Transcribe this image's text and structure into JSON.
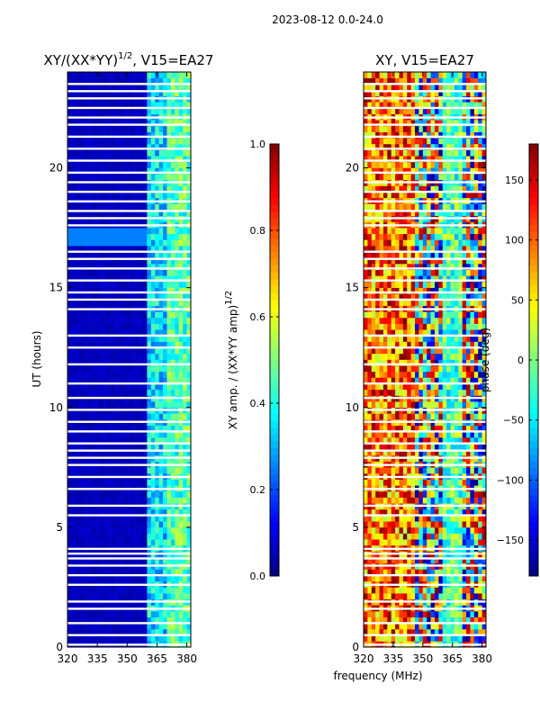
{
  "figure": {
    "suptitle": "2023-08-12 0.0-24.0",
    "xlabel_shared": "frequency (MHz)",
    "colors": {
      "jet": [
        "#00007f",
        "#0000ff",
        "#007fff",
        "#00ffff",
        "#7fff7f",
        "#ffff00",
        "#ff7f00",
        "#ff0000",
        "#7f0000"
      ]
    }
  },
  "chart_data": [
    {
      "type": "heatmap",
      "title_text": "XY/(XX*YY)",
      "title_sup": "1/2",
      "title_suffix": ", V15=EA27",
      "xlabel": "",
      "ylabel": "UT (hours)",
      "xlim": [
        320,
        382
      ],
      "ylim": [
        0,
        24
      ],
      "xticks": [
        320,
        335,
        350,
        365,
        380
      ],
      "yticks": [
        0,
        5,
        10,
        15,
        20
      ],
      "description_values": "normalized cross-correlation amplitude, mostly low (~0.05) with higher values (0.3-0.6) in 360-382 MHz band",
      "band_levels": [
        {
          "f_from": 320,
          "f_to": 360,
          "level": 0.06
        },
        {
          "f_from": 360,
          "f_to": 370,
          "level": 0.35
        },
        {
          "f_from": 370,
          "f_to": 382,
          "level": 0.45
        }
      ],
      "bright_rows_ut": [
        16.9,
        17.3
      ],
      "missing_rows_ut": [
        0.1,
        0.5,
        1.0,
        1.6,
        1.9,
        2.6,
        3.0,
        3.4,
        3.7,
        3.9,
        4.1,
        5.5,
        5.9,
        6.6,
        7.1,
        7.6,
        7.9,
        8.2,
        8.5,
        9.0,
        9.4,
        9.9,
        10.4,
        11.0,
        11.8,
        12.5,
        13.0,
        14.1,
        14.5,
        14.8,
        15.3,
        15.8,
        16.2,
        16.5,
        17.6,
        17.9,
        18.2,
        18.6,
        19.0,
        19.4,
        19.8,
        20.3,
        20.8,
        21.3,
        21.8,
        22.1,
        22.5,
        22.9,
        23.2,
        23.5
      ],
      "colorbar": {
        "label_text": "XY amp. / (XX*YY amp)",
        "label_sup": "1/2",
        "range": [
          0.0,
          1.0
        ],
        "ticks": [
          "0.0",
          "0.2",
          "0.4",
          "0.6",
          "0.8",
          "1.0"
        ],
        "tick_values": [
          0.0,
          0.2,
          0.4,
          0.6,
          0.8,
          1.0
        ]
      }
    },
    {
      "type": "heatmap",
      "title_text": "XY, V15=EA27",
      "xlabel": "frequency (MHz)",
      "ylabel": "",
      "xlim": [
        320,
        382
      ],
      "ylim": [
        0,
        24
      ],
      "xticks": [
        320,
        335,
        350,
        365,
        380
      ],
      "yticks": [
        0,
        5,
        10,
        15,
        20
      ],
      "description_values": "cross-correlation phase in degrees, noisy values spanning -180 to 180",
      "missing_rows_ut": [
        0.1,
        0.5,
        1.0,
        1.6,
        1.9,
        2.6,
        3.0,
        3.4,
        3.7,
        3.9,
        4.1,
        5.5,
        5.9,
        6.6,
        7.1,
        7.6,
        7.9,
        8.2,
        8.5,
        9.0,
        9.4,
        9.9,
        10.4,
        11.0,
        11.8,
        12.5,
        13.0,
        14.1,
        14.5,
        14.8,
        15.3,
        15.8,
        16.2,
        16.5,
        17.6,
        17.9,
        18.2,
        18.6,
        19.0,
        19.4,
        19.8,
        20.3,
        20.8,
        21.3,
        21.8,
        22.1,
        22.5,
        22.9,
        23.2,
        23.5
      ],
      "colorbar": {
        "label_text": "phase (deg)",
        "range": [
          -180,
          180
        ],
        "ticks": [
          "−150",
          "−100",
          "−50",
          "0",
          "50",
          "100",
          "150"
        ],
        "tick_values": [
          -150,
          -100,
          -50,
          0,
          50,
          100,
          150
        ]
      }
    }
  ]
}
